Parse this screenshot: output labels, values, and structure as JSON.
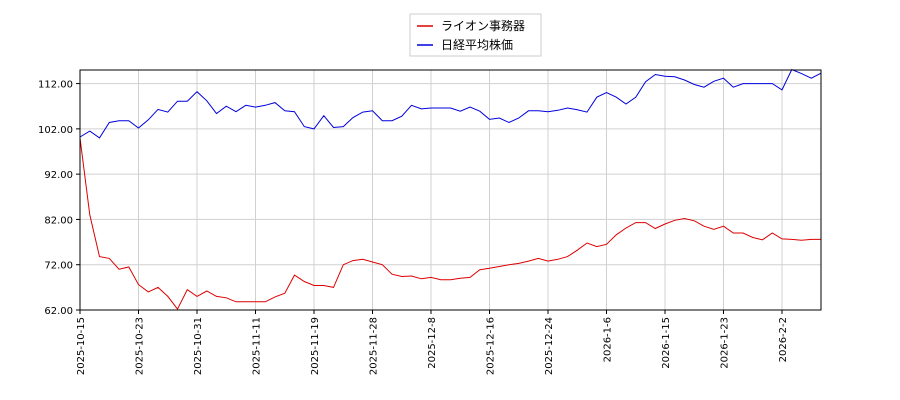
{
  "chart_data": {
    "type": "line",
    "title": "",
    "xlabel": "",
    "ylabel": "",
    "ylim": [
      62,
      115
    ],
    "y_ticks": [
      "62.00",
      "72.00",
      "82.00",
      "92.00",
      "102.00",
      "112.00"
    ],
    "y_tick_values": [
      62,
      72,
      82,
      92,
      102,
      112
    ],
    "x_ticks": [
      "2025-10-15",
      "2025-10-23",
      "2025-10-31",
      "2025-11-11",
      "2025-11-19",
      "2025-11-28",
      "2025-12-8",
      "2025-12-16",
      "2025-12-24",
      "2026-1-6",
      "2026-1-15",
      "2026-1-23",
      "2026-2-2"
    ],
    "x_tick_positions": [
      0,
      6,
      12,
      18,
      24,
      30,
      36,
      42,
      48,
      54,
      60,
      66,
      72
    ],
    "x_count": 77,
    "grid": true,
    "legend_placement": "top-center",
    "series": [
      {
        "name": "ライオン事務器",
        "color": "#dd0000",
        "values": [
          100,
          83,
          73.8,
          73.4,
          71.0,
          71.5,
          67.6,
          66.0,
          67.0,
          65.0,
          62.2,
          66.5,
          65.0,
          66.2,
          65.0,
          64.7,
          63.8,
          63.8,
          63.8,
          63.8,
          64.9,
          65.7,
          69.7,
          68.3,
          67.4,
          67.4,
          67.0,
          72.0,
          72.9,
          73.2,
          72.6,
          72.0,
          69.9,
          69.4,
          69.5,
          68.9,
          69.2,
          68.7,
          68.7,
          69.0,
          69.2,
          70.9,
          71.2,
          71.6,
          72.0,
          72.3,
          72.8,
          73.4,
          72.8,
          73.2,
          73.8,
          75.2,
          76.8,
          76.0,
          76.5,
          78.6,
          80.1,
          81.3,
          81.3,
          80.0,
          81.0,
          81.8,
          82.2,
          81.7,
          80.5,
          79.8,
          80.5,
          79.0,
          79.0,
          78.0,
          77.5,
          79.0,
          77.7,
          77.6,
          77.4,
          77.6,
          77.6
        ]
      },
      {
        "name": "日経平均株価",
        "color": "#0000dd",
        "values": [
          100.2,
          101.5,
          100.0,
          103.4,
          103.8,
          103.8,
          102.2,
          104.0,
          106.3,
          105.7,
          108.1,
          108.1,
          110.2,
          108.2,
          105.4,
          107.0,
          105.8,
          107.2,
          106.8,
          107.2,
          107.8,
          106.0,
          105.8,
          102.5,
          102.0,
          104.9,
          102.3,
          102.5,
          104.5,
          105.7,
          106.0,
          103.8,
          103.8,
          104.8,
          107.2,
          106.4,
          106.6,
          106.6,
          106.6,
          105.9,
          106.8,
          105.9,
          104.1,
          104.4,
          103.4,
          104.4,
          106.0,
          106.0,
          105.8,
          106.1,
          106.6,
          106.2,
          105.7,
          109.0,
          110.0,
          109.0,
          107.5,
          109.0,
          112.4,
          114.0,
          113.6,
          113.5,
          112.8,
          111.8,
          111.2,
          112.5,
          113.2,
          111.2,
          112.0,
          112.0,
          112.0,
          112.0,
          110.6,
          115.1,
          114.2,
          113.2,
          114.3
        ]
      }
    ]
  }
}
